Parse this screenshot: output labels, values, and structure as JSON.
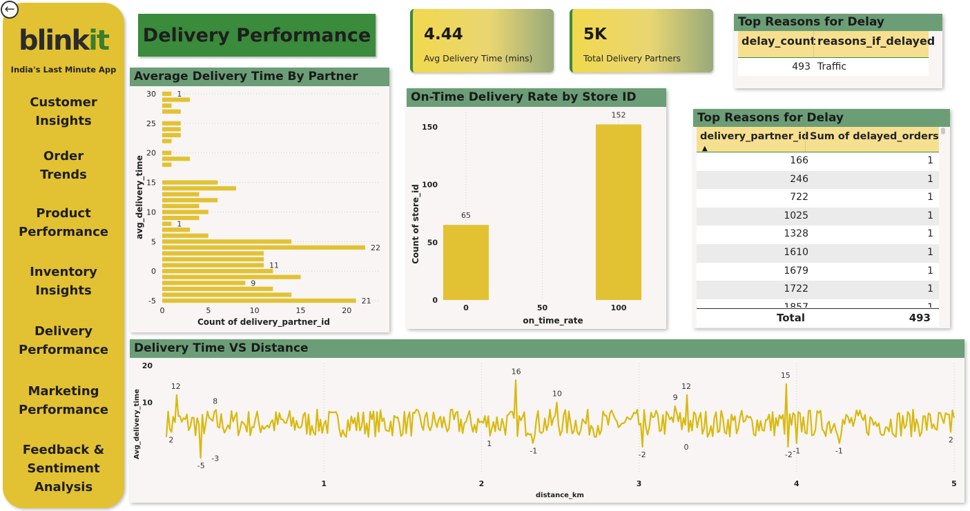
{
  "brand": {
    "logo_main": "blink",
    "logo_accent": "it",
    "tagline": "India's Last Minute App"
  },
  "nav": [
    {
      "line1": "Customer",
      "line2": "Insights"
    },
    {
      "line1": "Order",
      "line2": "Trends"
    },
    {
      "line1": "Product",
      "line2": "Performance"
    },
    {
      "line1": "Inventory",
      "line2": "Insights"
    },
    {
      "line1": "Delivery",
      "line2": "Performance"
    },
    {
      "line1": "Marketing",
      "line2": "Performance"
    },
    {
      "line1": "Feedback &",
      "line2": "Sentiment",
      "line3": "Analysis"
    }
  ],
  "page_title": "Delivery Performance",
  "kpis": [
    {
      "value": "4.44",
      "label": "Avg Delivery Time (mins)"
    },
    {
      "value": "5K",
      "label": "Total Delivery Partners"
    }
  ],
  "colors": {
    "accent_green": "#3a8b3b",
    "panel_header": "#6b9e76",
    "bar_yellow": "#e2c232",
    "sidebar": "#e2c232"
  },
  "top_reasons_1": {
    "title": "Top Reasons for Delay",
    "columns": [
      "delay_count",
      "reasons_if_delayed"
    ],
    "rows": [
      {
        "delay_count": "493",
        "reason": "Traffic"
      }
    ]
  },
  "top_reasons_2": {
    "title": "Top Reasons for Delay",
    "columns": [
      "delivery_partner_id",
      "Sum of delayed_orders"
    ],
    "sort_icon": "sort-ascending-icon",
    "rows": [
      [
        "166",
        "1"
      ],
      [
        "246",
        "1"
      ],
      [
        "722",
        "1"
      ],
      [
        "1025",
        "1"
      ],
      [
        "1328",
        "1"
      ],
      [
        "1610",
        "1"
      ],
      [
        "1679",
        "1"
      ],
      [
        "1722",
        "1"
      ],
      [
        "1857",
        "1"
      ]
    ],
    "total_label": "Total",
    "total_value": "493"
  },
  "chart_data": [
    {
      "type": "bar",
      "orientation": "horizontal",
      "title": "Average Delivery Time By Partner",
      "xlabel": "Count of delivery_partner_id",
      "ylabel": "avg_delivery_time",
      "xlim": [
        0,
        22
      ],
      "ylim": [
        -5,
        30
      ],
      "x_ticks": [
        "0",
        "5",
        "10",
        "15",
        "20"
      ],
      "y_ticks": [
        "30",
        "25",
        "20",
        "15",
        "10",
        "5",
        "0",
        "-5"
      ],
      "y_categories": [
        30,
        29,
        28,
        27,
        25,
        24,
        23,
        22,
        20,
        19,
        18,
        15,
        14,
        13,
        12,
        11,
        10,
        9,
        8,
        7,
        6,
        5,
        4,
        3,
        2,
        1,
        0,
        -1,
        -2,
        -3,
        -4,
        -5
      ],
      "values": [
        1,
        3,
        1,
        2,
        2,
        2,
        2,
        1,
        1,
        3,
        1,
        6,
        8,
        4,
        6,
        4,
        5,
        4,
        1,
        3,
        5,
        14,
        22,
        11,
        11,
        11,
        12,
        15,
        9,
        12,
        14,
        21
      ],
      "data_labels": [
        {
          "y": 30,
          "text": "1"
        },
        {
          "y": 8,
          "text": "1"
        },
        {
          "y": 4,
          "text": "22"
        },
        {
          "y": 1,
          "text": "11"
        },
        {
          "y": -2,
          "text": "9"
        },
        {
          "y": -5,
          "text": "21"
        }
      ],
      "grid": true
    },
    {
      "type": "bar",
      "title": "On-Time Delivery Rate by Store ID",
      "xlabel": "on_time_rate",
      "ylabel": "Count of store_id",
      "categories": [
        0,
        100
      ],
      "values": [
        65,
        152
      ],
      "x_ticks": [
        "0",
        "50",
        "100"
      ],
      "y_ticks": [
        "0",
        "50",
        "100",
        "150"
      ],
      "ylim": [
        0,
        160
      ],
      "grid": true
    },
    {
      "type": "line",
      "title": "Delivery Time VS Distance",
      "xlabel": "distance_km",
      "ylabel": "Avg_delivery_time",
      "xlim": [
        0,
        5
      ],
      "ylim": [
        -5,
        20
      ],
      "x_ticks": [
        "1",
        "2",
        "3",
        "4",
        "5"
      ],
      "y_ticks": [
        "20",
        "10"
      ],
      "annotations": [
        {
          "x": 0.03,
          "y": 2,
          "text": "2"
        },
        {
          "x": 0.06,
          "y": 12,
          "text": "12"
        },
        {
          "x": 0.22,
          "y": -5,
          "text": "-5"
        },
        {
          "x": 0.31,
          "y": -3,
          "text": "-3"
        },
        {
          "x": 0.31,
          "y": 8,
          "text": "8"
        },
        {
          "x": 2.05,
          "y": 1,
          "text": "1"
        },
        {
          "x": 2.22,
          "y": 16,
          "text": "16"
        },
        {
          "x": 2.33,
          "y": -1,
          "text": "-1"
        },
        {
          "x": 2.48,
          "y": 10,
          "text": "10"
        },
        {
          "x": 3.02,
          "y": -2,
          "text": "-2"
        },
        {
          "x": 3.23,
          "y": 9,
          "text": "9"
        },
        {
          "x": 3.3,
          "y": 0,
          "text": "0"
        },
        {
          "x": 3.3,
          "y": 12,
          "text": "12"
        },
        {
          "x": 3.93,
          "y": 15,
          "text": "15"
        },
        {
          "x": 3.95,
          "y": -2,
          "text": "-2"
        },
        {
          "x": 4.0,
          "y": -1,
          "text": "-1"
        },
        {
          "x": 4.27,
          "y": -1,
          "text": "-1"
        },
        {
          "x": 4.98,
          "y": 2,
          "text": "2"
        }
      ],
      "grid": true
    }
  ]
}
